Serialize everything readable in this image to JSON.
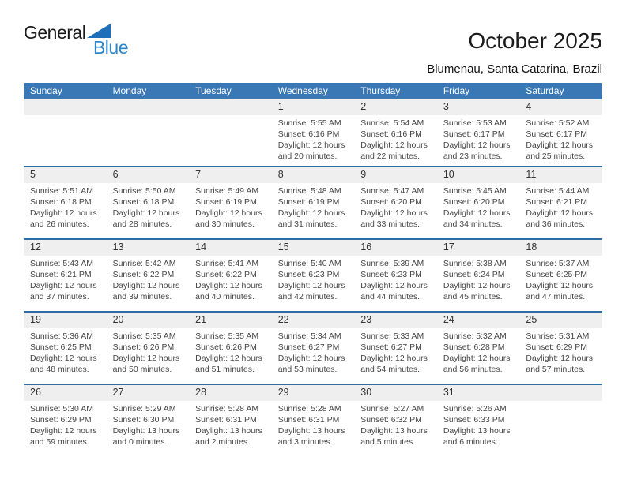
{
  "logo": {
    "part1": "General",
    "part2": "Blue"
  },
  "header": {
    "title": "October 2025",
    "subtitle": "Blumenau, Santa Catarina, Brazil"
  },
  "colors": {
    "header_band": "#3a77b5",
    "row_separator": "#2e6da4",
    "daynum_band": "#efefef",
    "logo_blue": "#2b86ca",
    "logo_triangle": "#1c6fb8"
  },
  "calendar": {
    "day_headers": [
      "Sunday",
      "Monday",
      "Tuesday",
      "Wednesday",
      "Thursday",
      "Friday",
      "Saturday"
    ],
    "weeks": [
      {
        "days": [
          {
            "date": ""
          },
          {
            "date": ""
          },
          {
            "date": ""
          },
          {
            "date": "1",
            "sunrise": "Sunrise: 5:55 AM",
            "sunset": "Sunset: 6:16 PM",
            "daylight": "Daylight: 12 hours and 20 minutes."
          },
          {
            "date": "2",
            "sunrise": "Sunrise: 5:54 AM",
            "sunset": "Sunset: 6:16 PM",
            "daylight": "Daylight: 12 hours and 22 minutes."
          },
          {
            "date": "3",
            "sunrise": "Sunrise: 5:53 AM",
            "sunset": "Sunset: 6:17 PM",
            "daylight": "Daylight: 12 hours and 23 minutes."
          },
          {
            "date": "4",
            "sunrise": "Sunrise: 5:52 AM",
            "sunset": "Sunset: 6:17 PM",
            "daylight": "Daylight: 12 hours and 25 minutes."
          }
        ]
      },
      {
        "days": [
          {
            "date": "5",
            "sunrise": "Sunrise: 5:51 AM",
            "sunset": "Sunset: 6:18 PM",
            "daylight": "Daylight: 12 hours and 26 minutes."
          },
          {
            "date": "6",
            "sunrise": "Sunrise: 5:50 AM",
            "sunset": "Sunset: 6:18 PM",
            "daylight": "Daylight: 12 hours and 28 minutes."
          },
          {
            "date": "7",
            "sunrise": "Sunrise: 5:49 AM",
            "sunset": "Sunset: 6:19 PM",
            "daylight": "Daylight: 12 hours and 30 minutes."
          },
          {
            "date": "8",
            "sunrise": "Sunrise: 5:48 AM",
            "sunset": "Sunset: 6:19 PM",
            "daylight": "Daylight: 12 hours and 31 minutes."
          },
          {
            "date": "9",
            "sunrise": "Sunrise: 5:47 AM",
            "sunset": "Sunset: 6:20 PM",
            "daylight": "Daylight: 12 hours and 33 minutes."
          },
          {
            "date": "10",
            "sunrise": "Sunrise: 5:45 AM",
            "sunset": "Sunset: 6:20 PM",
            "daylight": "Daylight: 12 hours and 34 minutes."
          },
          {
            "date": "11",
            "sunrise": "Sunrise: 5:44 AM",
            "sunset": "Sunset: 6:21 PM",
            "daylight": "Daylight: 12 hours and 36 minutes."
          }
        ]
      },
      {
        "days": [
          {
            "date": "12",
            "sunrise": "Sunrise: 5:43 AM",
            "sunset": "Sunset: 6:21 PM",
            "daylight": "Daylight: 12 hours and 37 minutes."
          },
          {
            "date": "13",
            "sunrise": "Sunrise: 5:42 AM",
            "sunset": "Sunset: 6:22 PM",
            "daylight": "Daylight: 12 hours and 39 minutes."
          },
          {
            "date": "14",
            "sunrise": "Sunrise: 5:41 AM",
            "sunset": "Sunset: 6:22 PM",
            "daylight": "Daylight: 12 hours and 40 minutes."
          },
          {
            "date": "15",
            "sunrise": "Sunrise: 5:40 AM",
            "sunset": "Sunset: 6:23 PM",
            "daylight": "Daylight: 12 hours and 42 minutes."
          },
          {
            "date": "16",
            "sunrise": "Sunrise: 5:39 AM",
            "sunset": "Sunset: 6:23 PM",
            "daylight": "Daylight: 12 hours and 44 minutes."
          },
          {
            "date": "17",
            "sunrise": "Sunrise: 5:38 AM",
            "sunset": "Sunset: 6:24 PM",
            "daylight": "Daylight: 12 hours and 45 minutes."
          },
          {
            "date": "18",
            "sunrise": "Sunrise: 5:37 AM",
            "sunset": "Sunset: 6:25 PM",
            "daylight": "Daylight: 12 hours and 47 minutes."
          }
        ]
      },
      {
        "days": [
          {
            "date": "19",
            "sunrise": "Sunrise: 5:36 AM",
            "sunset": "Sunset: 6:25 PM",
            "daylight": "Daylight: 12 hours and 48 minutes."
          },
          {
            "date": "20",
            "sunrise": "Sunrise: 5:35 AM",
            "sunset": "Sunset: 6:26 PM",
            "daylight": "Daylight: 12 hours and 50 minutes."
          },
          {
            "date": "21",
            "sunrise": "Sunrise: 5:35 AM",
            "sunset": "Sunset: 6:26 PM",
            "daylight": "Daylight: 12 hours and 51 minutes."
          },
          {
            "date": "22",
            "sunrise": "Sunrise: 5:34 AM",
            "sunset": "Sunset: 6:27 PM",
            "daylight": "Daylight: 12 hours and 53 minutes."
          },
          {
            "date": "23",
            "sunrise": "Sunrise: 5:33 AM",
            "sunset": "Sunset: 6:27 PM",
            "daylight": "Daylight: 12 hours and 54 minutes."
          },
          {
            "date": "24",
            "sunrise": "Sunrise: 5:32 AM",
            "sunset": "Sunset: 6:28 PM",
            "daylight": "Daylight: 12 hours and 56 minutes."
          },
          {
            "date": "25",
            "sunrise": "Sunrise: 5:31 AM",
            "sunset": "Sunset: 6:29 PM",
            "daylight": "Daylight: 12 hours and 57 minutes."
          }
        ]
      },
      {
        "days": [
          {
            "date": "26",
            "sunrise": "Sunrise: 5:30 AM",
            "sunset": "Sunset: 6:29 PM",
            "daylight": "Daylight: 12 hours and 59 minutes."
          },
          {
            "date": "27",
            "sunrise": "Sunrise: 5:29 AM",
            "sunset": "Sunset: 6:30 PM",
            "daylight": "Daylight: 13 hours and 0 minutes."
          },
          {
            "date": "28",
            "sunrise": "Sunrise: 5:28 AM",
            "sunset": "Sunset: 6:31 PM",
            "daylight": "Daylight: 13 hours and 2 minutes."
          },
          {
            "date": "29",
            "sunrise": "Sunrise: 5:28 AM",
            "sunset": "Sunset: 6:31 PM",
            "daylight": "Daylight: 13 hours and 3 minutes."
          },
          {
            "date": "30",
            "sunrise": "Sunrise: 5:27 AM",
            "sunset": "Sunset: 6:32 PM",
            "daylight": "Daylight: 13 hours and 5 minutes."
          },
          {
            "date": "31",
            "sunrise": "Sunrise: 5:26 AM",
            "sunset": "Sunset: 6:33 PM",
            "daylight": "Daylight: 13 hours and 6 minutes."
          },
          {
            "date": ""
          }
        ]
      }
    ]
  }
}
